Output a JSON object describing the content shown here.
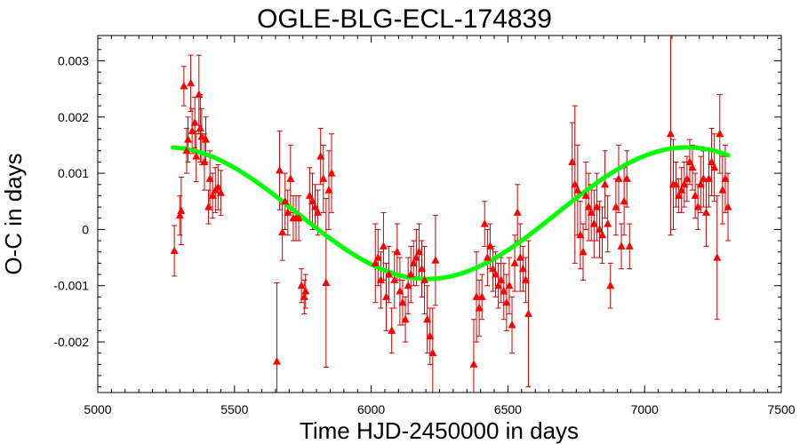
{
  "chart_data": {
    "type": "scatter",
    "title": "OGLE-BLG-ECL-174839",
    "xlabel": "Time HJD-2450000 in days",
    "ylabel": "O-C in days",
    "xlim": [
      5000,
      7500
    ],
    "ylim": [
      -0.0029,
      0.00345
    ],
    "xticks": [
      "5000",
      "5500",
      "6000",
      "6500",
      "7000",
      "7500"
    ],
    "yticks": [
      "-0.002",
      "-0.001",
      "0",
      "0.001",
      "0.002",
      "0.003"
    ],
    "grid": false,
    "legend": "none",
    "colors": {
      "points": "#ff0000",
      "errorbars": "#cc0000",
      "fit": "#00ff00",
      "frame": "#000000"
    },
    "series": [
      {
        "kind": "points-with-errorbars",
        "points": [
          {
            "x": 5280,
            "y": -0.00038,
            "err": 0.00045
          },
          {
            "x": 5300,
            "y": 0.00025,
            "err": 0.00035
          },
          {
            "x": 5305,
            "y": 0.00033,
            "err": 0.0006
          },
          {
            "x": 5315,
            "y": 0.00255,
            "err": 0.00035
          },
          {
            "x": 5325,
            "y": 0.0014,
            "err": 0.0004
          },
          {
            "x": 5330,
            "y": 0.0016,
            "err": 0.0004
          },
          {
            "x": 5340,
            "y": 0.0026,
            "err": 0.0005
          },
          {
            "x": 5345,
            "y": 0.00175,
            "err": 0.0004
          },
          {
            "x": 5355,
            "y": 0.0019,
            "err": 0.00045
          },
          {
            "x": 5360,
            "y": 0.0013,
            "err": 0.00045
          },
          {
            "x": 5370,
            "y": 0.0024,
            "err": 0.0007
          },
          {
            "x": 5375,
            "y": 0.0018,
            "err": 0.0006
          },
          {
            "x": 5380,
            "y": 0.00165,
            "err": 0.0005
          },
          {
            "x": 5390,
            "y": 0.0012,
            "err": 0.0005
          },
          {
            "x": 5395,
            "y": 0.0016,
            "err": 0.0004
          },
          {
            "x": 5405,
            "y": 0.0004,
            "err": 0.0003
          },
          {
            "x": 5410,
            "y": 0.0009,
            "err": 0.0005
          },
          {
            "x": 5420,
            "y": 0.0006,
            "err": 0.0004
          },
          {
            "x": 5430,
            "y": 0.0007,
            "err": 0.0004
          },
          {
            "x": 5440,
            "y": 0.00075,
            "err": 0.0004
          },
          {
            "x": 5450,
            "y": 0.00065,
            "err": 0.0004
          },
          {
            "x": 5655,
            "y": -0.00235,
            "err": 0.0014
          },
          {
            "x": 5665,
            "y": 0.00105,
            "err": 0.0007
          },
          {
            "x": 5675,
            "y": -5e-05,
            "err": 0.0005
          },
          {
            "x": 5685,
            "y": 0.0005,
            "err": 0.0005
          },
          {
            "x": 5695,
            "y": 0.0003,
            "err": 0.0004
          },
          {
            "x": 5705,
            "y": 0.0009,
            "err": 0.0006
          },
          {
            "x": 5715,
            "y": 0.0002,
            "err": 0.0004
          },
          {
            "x": 5725,
            "y": 0.0002,
            "err": 0.0004
          },
          {
            "x": 5735,
            "y": 0.0002,
            "err": 0.0004
          },
          {
            "x": 5745,
            "y": -0.001,
            "err": 0.0003
          },
          {
            "x": 5755,
            "y": -0.0012,
            "err": 0.0003
          },
          {
            "x": 5760,
            "y": -0.0011,
            "err": 0.0003
          },
          {
            "x": 5775,
            "y": 0.0006,
            "err": 0.0005
          },
          {
            "x": 5785,
            "y": 0.0005,
            "err": 0.0005
          },
          {
            "x": 5795,
            "y": 0.0004,
            "err": 0.0004
          },
          {
            "x": 5805,
            "y": 0.0003,
            "err": 0.0004
          },
          {
            "x": 5815,
            "y": 0.0013,
            "err": 0.0005
          },
          {
            "x": 5825,
            "y": 0.0009,
            "err": 0.0006
          },
          {
            "x": 5835,
            "y": -0.00095,
            "err": 0.0015
          },
          {
            "x": 5845,
            "y": 0.0007,
            "err": 0.0007
          },
          {
            "x": 5855,
            "y": 0.001,
            "err": 0.0007
          },
          {
            "x": 6015,
            "y": -0.0006,
            "err": 0.0007
          },
          {
            "x": 6025,
            "y": -0.0005,
            "err": 0.0005
          },
          {
            "x": 6035,
            "y": -0.0009,
            "err": 0.0005
          },
          {
            "x": 6045,
            "y": -0.0003,
            "err": 0.0006
          },
          {
            "x": 6055,
            "y": -0.0012,
            "err": 0.0006
          },
          {
            "x": 6065,
            "y": -0.0008,
            "err": 0.0005
          },
          {
            "x": 6075,
            "y": -0.0018,
            "err": 0.0004
          },
          {
            "x": 6085,
            "y": -0.0009,
            "err": 0.0005
          },
          {
            "x": 6095,
            "y": -0.0004,
            "err": 0.0005
          },
          {
            "x": 6105,
            "y": -0.0011,
            "err": 0.0006
          },
          {
            "x": 6115,
            "y": -0.0013,
            "err": 0.0004
          },
          {
            "x": 6125,
            "y": -0.0016,
            "err": 0.0004
          },
          {
            "x": 6135,
            "y": -0.001,
            "err": 0.0005
          },
          {
            "x": 6145,
            "y": -0.0008,
            "err": 0.0005
          },
          {
            "x": 6155,
            "y": -0.0006,
            "err": 0.0004
          },
          {
            "x": 6165,
            "y": -0.0005,
            "err": 0.0005
          },
          {
            "x": 6175,
            "y": -0.0004,
            "err": 0.0005
          },
          {
            "x": 6185,
            "y": -0.0007,
            "err": 0.0005
          },
          {
            "x": 6195,
            "y": -0.0009,
            "err": 0.0006
          },
          {
            "x": 6205,
            "y": -0.0016,
            "err": 0.0006
          },
          {
            "x": 6215,
            "y": -0.0019,
            "err": 0.0005
          },
          {
            "x": 6225,
            "y": -0.0022,
            "err": 0.0008
          },
          {
            "x": 6235,
            "y": -0.00055,
            "err": 0.0008
          },
          {
            "x": 6375,
            "y": -0.0024,
            "err": 0.0008
          },
          {
            "x": 6385,
            "y": -0.0012,
            "err": 0.0008
          },
          {
            "x": 6395,
            "y": -0.0014,
            "err": 0.0005
          },
          {
            "x": 6405,
            "y": -0.0012,
            "err": 0.0004
          },
          {
            "x": 6415,
            "y": 0.0001,
            "err": 0.0004
          },
          {
            "x": 6425,
            "y": -0.0005,
            "err": 0.0005
          },
          {
            "x": 6435,
            "y": -0.0003,
            "err": 0.0004
          },
          {
            "x": 6445,
            "y": -0.0007,
            "err": 0.0004
          },
          {
            "x": 6455,
            "y": -0.0008,
            "err": 0.0004
          },
          {
            "x": 6465,
            "y": -0.001,
            "err": 0.0004
          },
          {
            "x": 6475,
            "y": -0.0009,
            "err": 0.0004
          },
          {
            "x": 6485,
            "y": -0.0011,
            "err": 0.0005
          },
          {
            "x": 6495,
            "y": -0.0013,
            "err": 0.0005
          },
          {
            "x": 6505,
            "y": -0.001,
            "err": 0.0005
          },
          {
            "x": 6515,
            "y": -0.0017,
            "err": 0.0005
          },
          {
            "x": 6525,
            "y": -0.0006,
            "err": 0.0005
          },
          {
            "x": 6535,
            "y": 0.0003,
            "err": 0.0005
          },
          {
            "x": 6545,
            "y": -0.0005,
            "err": 0.0006
          },
          {
            "x": 6555,
            "y": -0.0007,
            "err": 0.0004
          },
          {
            "x": 6565,
            "y": -0.0009,
            "err": 0.0004
          },
          {
            "x": 6575,
            "y": -0.0015,
            "err": 0.0013
          },
          {
            "x": 6735,
            "y": 0.0012,
            "err": 0.0007
          },
          {
            "x": 6745,
            "y": 0.0008,
            "err": 0.0014
          },
          {
            "x": 6755,
            "y": 0.0007,
            "err": 0.0008
          },
          {
            "x": 6765,
            "y": -0.0001,
            "err": 0.0006
          },
          {
            "x": 6775,
            "y": -0.0004,
            "err": 0.0005
          },
          {
            "x": 6785,
            "y": 0.0006,
            "err": 0.0006
          },
          {
            "x": 6795,
            "y": 0.0004,
            "err": 0.0006
          },
          {
            "x": 6805,
            "y": 0.0003,
            "err": 0.0005
          },
          {
            "x": 6815,
            "y": 0.0001,
            "err": 0.0006
          },
          {
            "x": 6825,
            "y": 0.0004,
            "err": 0.0006
          },
          {
            "x": 6835,
            "y": 0.0,
            "err": 0.0005
          },
          {
            "x": 6845,
            "y": -0.0001,
            "err": 0.0005
          },
          {
            "x": 6855,
            "y": 0.0008,
            "err": 0.0006
          },
          {
            "x": 6865,
            "y": 0.0001,
            "err": 0.0005
          },
          {
            "x": 6875,
            "y": -0.001,
            "err": 0.0004
          },
          {
            "x": 6895,
            "y": 0.0004,
            "err": 0.0005
          },
          {
            "x": 6905,
            "y": 0.0009,
            "err": 0.0006
          },
          {
            "x": 6915,
            "y": -0.0003,
            "err": 0.0004
          },
          {
            "x": 6925,
            "y": 0.0005,
            "err": 0.0006
          },
          {
            "x": 6935,
            "y": 0.0009,
            "err": 0.0005
          },
          {
            "x": 6945,
            "y": -0.0003,
            "err": 0.0004
          },
          {
            "x": 7095,
            "y": 0.0017,
            "err": 0.0018
          },
          {
            "x": 7105,
            "y": 0.0008,
            "err": 0.0008
          },
          {
            "x": 7115,
            "y": 0.0008,
            "err": 0.0004
          },
          {
            "x": 7125,
            "y": 0.0006,
            "err": 0.0003
          },
          {
            "x": 7135,
            "y": 0.0007,
            "err": 0.0004
          },
          {
            "x": 7145,
            "y": 0.0008,
            "err": 0.0004
          },
          {
            "x": 7155,
            "y": 0.0009,
            "err": 0.0004
          },
          {
            "x": 7165,
            "y": 0.0012,
            "err": 0.0004
          },
          {
            "x": 7175,
            "y": 0.0011,
            "err": 0.0004
          },
          {
            "x": 7185,
            "y": 0.0006,
            "err": 0.0004
          },
          {
            "x": 7195,
            "y": 0.0004,
            "err": 0.0004
          },
          {
            "x": 7205,
            "y": 0.0008,
            "err": 0.0005
          },
          {
            "x": 7215,
            "y": 0.0009,
            "err": 0.0005
          },
          {
            "x": 7225,
            "y": 0.0003,
            "err": 0.0006
          },
          {
            "x": 7235,
            "y": 0.0009,
            "err": 0.0005
          },
          {
            "x": 7245,
            "y": 0.0012,
            "err": 0.0006
          },
          {
            "x": 7255,
            "y": 0.0011,
            "err": 0.0006
          },
          {
            "x": 7265,
            "y": -0.0005,
            "err": 0.0011
          },
          {
            "x": 7275,
            "y": 0.0017,
            "err": 0.0007
          },
          {
            "x": 7285,
            "y": 0.0007,
            "err": 0.0006
          },
          {
            "x": 7295,
            "y": 0.0009,
            "err": 0.0006
          },
          {
            "x": 7305,
            "y": 0.0004,
            "err": 0.0006
          }
        ]
      },
      {
        "kind": "fit-curve",
        "formula": "y = 0.00029 + 0.00117*sin(2*pi*(x-6680)/1900)",
        "xrange": [
          5275,
          7305
        ]
      }
    ]
  }
}
